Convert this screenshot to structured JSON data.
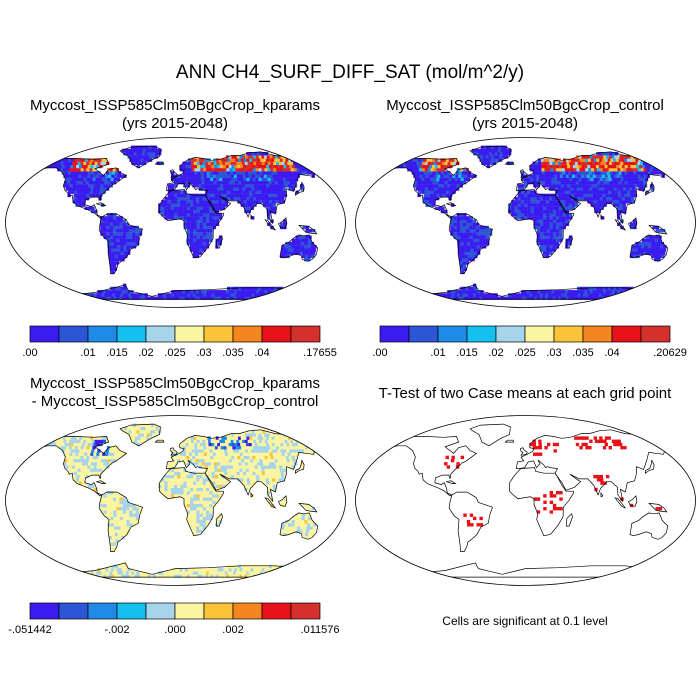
{
  "figure": {
    "title": "ANN CH4_SURF_DIFF_SAT (mol/m^2/y)"
  },
  "panels": [
    {
      "id": "kparams",
      "title_line1": "Myccost_ISSP585Clm50BgcCrop_kparams",
      "title_line2": "(yrs 2015-2048)"
    },
    {
      "id": "control",
      "title_line1": "Myccost_ISSP585Clm50BgcCrop_control",
      "title_line2": "(yrs 2015-2048)"
    },
    {
      "id": "diff",
      "title_line1": "Myccost_ISSP585Clm50BgcCrop_kparams",
      "title_line2": "- Myccost_ISSP585Clm50BgcCrop_control"
    },
    {
      "id": "ttest",
      "title_line1": "T-Test of two Case means at each grid point",
      "title_line2": ""
    }
  ],
  "ttest_note": "Cells are significant at 0.1 level",
  "colorbars": {
    "kparams": {
      "colors": [
        "#3b1bf0",
        "#2d55d8",
        "#1f8ae8",
        "#14c0f0",
        "#a6d4ea",
        "#fbf4a0",
        "#fbc33a",
        "#f5851e",
        "#e8131a",
        "#d4302c"
      ],
      "labels": [
        ".00",
        "",
        ".01",
        ".015",
        ".02",
        ".025",
        ".03",
        ".035",
        ".04",
        "",
        ".17655"
      ]
    },
    "control": {
      "colors": [
        "#3b1bf0",
        "#2d55d8",
        "#1f8ae8",
        "#14c0f0",
        "#a6d4ea",
        "#fbf4a0",
        "#fbc33a",
        "#f5851e",
        "#e8131a",
        "#d4302c"
      ],
      "labels": [
        ".00",
        "",
        ".01",
        ".015",
        ".02",
        ".025",
        ".03",
        ".035",
        ".04",
        "",
        ".20629"
      ]
    },
    "diff": {
      "colors": [
        "#3b1bf0",
        "#2d55d8",
        "#1f8ae8",
        "#14c0f0",
        "#a6d4ea",
        "#fbf4a0",
        "#fbc33a",
        "#f5851e",
        "#e8131a",
        "#d4302c"
      ],
      "labels": [
        "-.051442",
        "",
        "",
        "-.002",
        "",
        ".000",
        "",
        ".002",
        "",
        "",
        ".011576"
      ]
    }
  },
  "colors": {
    "land_low": "#3b1bf0",
    "land_mid": "#2d55d8",
    "land_high": "#e8131a",
    "diff_base": "#fbf4a0",
    "diff_alt": "#a6d4ea",
    "significant": "#e8131a",
    "coast": "#000000"
  },
  "chart_data": [
    {
      "type": "heatmap",
      "title": "Myccost_ISSP585Clm50BgcCrop_kparams (yrs 2015-2048)",
      "projection": "robinson",
      "range": [
        0.0,
        0.17655
      ],
      "levels": [
        0.0,
        0.005,
        0.01,
        0.015,
        0.02,
        0.025,
        0.03,
        0.035,
        0.04,
        0.045,
        0.17655
      ],
      "pattern": "low values (.00-.005) over most land; high values (.035-.04+) over northern high-latitude wetlands (Canada, Siberia)"
    },
    {
      "type": "heatmap",
      "title": "Myccost_ISSP585Clm50BgcCrop_control (yrs 2015-2048)",
      "projection": "robinson",
      "range": [
        0.0,
        0.20629
      ],
      "levels": [
        0.0,
        0.005,
        0.01,
        0.015,
        0.02,
        0.025,
        0.03,
        0.035,
        0.04,
        0.045,
        0.20629
      ],
      "pattern": "low values (.00-.005) over most land; high values (.035-.04+) over northern high-latitude wetlands (Canada, Siberia)"
    },
    {
      "type": "heatmap",
      "title": "Myccost_ISSP585Clm50BgcCrop_kparams - Myccost_ISSP585Clm50BgcCrop_control",
      "projection": "robinson",
      "range": [
        -0.051442,
        0.011576
      ],
      "pattern": "near zero (.000) over most land; negative patches over Hudson Bay and western Siberia"
    },
    {
      "type": "heatmap",
      "title": "T-Test of two Case means at each grid point",
      "projection": "robinson",
      "significance_level": 0.1,
      "pattern": "scattered significant cells in eastern North America, northern Europe, central Africa, India and Indonesia"
    }
  ]
}
